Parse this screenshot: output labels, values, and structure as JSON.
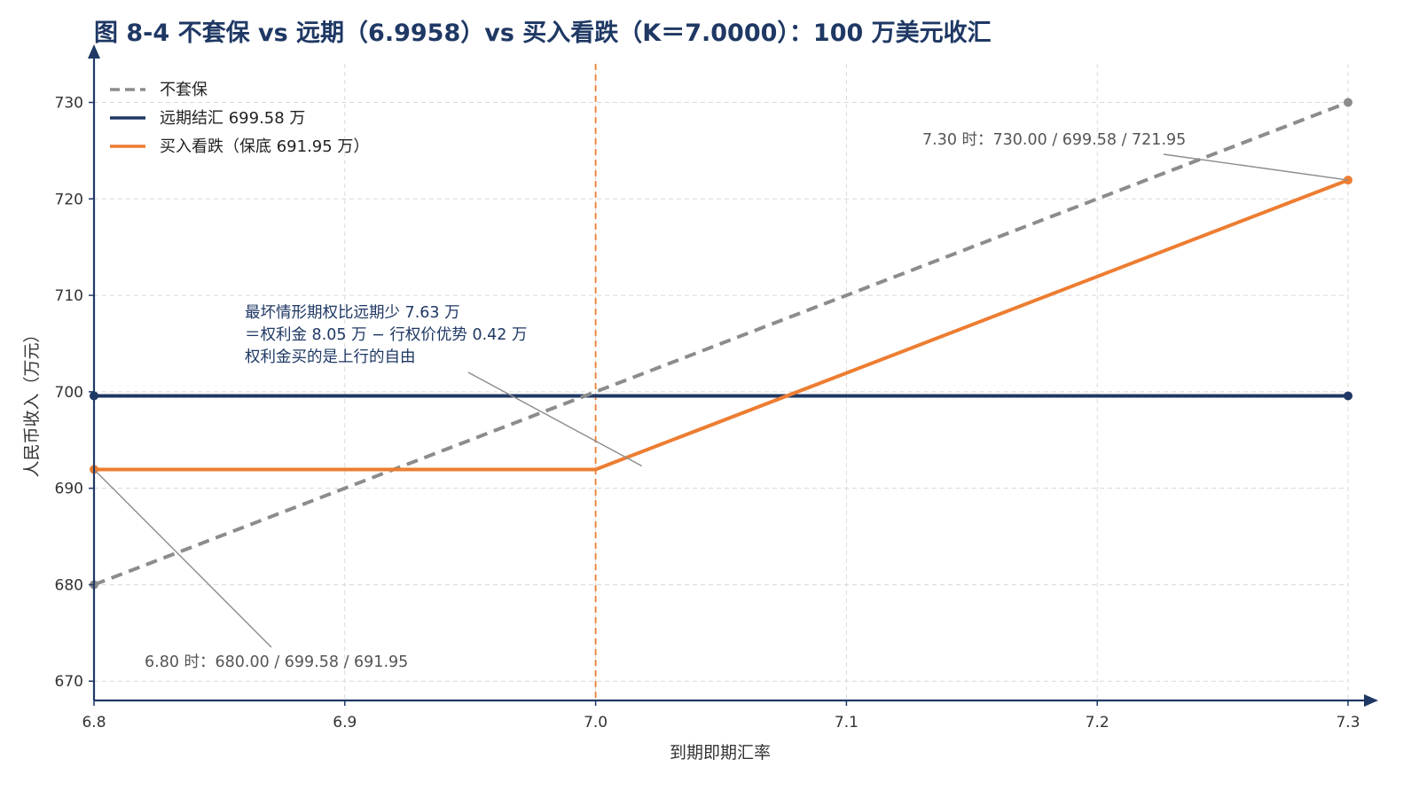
{
  "chart_data": {
    "type": "line",
    "title": "图 8-4 不套保 vs 远期（6.9958）vs 买入看跌（K＝7.0000）：100 万美元收汇",
    "xlabel": "到期即期汇率",
    "ylabel": "人民币收入（万元）",
    "xlim": [
      6.8,
      7.3
    ],
    "ylim": [
      668,
      734
    ],
    "x_ticks": [
      6.8,
      6.9,
      7.0,
      7.1,
      7.2,
      7.3
    ],
    "x_tick_labels": [
      "6.8",
      "6.9",
      "7.0",
      "7.1",
      "7.2",
      "7.3"
    ],
    "y_ticks": [
      670,
      680,
      690,
      700,
      710,
      720,
      730
    ],
    "y_tick_labels": [
      "670",
      "680",
      "690",
      "700",
      "710",
      "720",
      "730"
    ],
    "grid": true,
    "legend_position": "top-left",
    "strike_line": {
      "x": 7.0,
      "color": "#ED7D31",
      "style": "dashed"
    },
    "series": [
      {
        "name": "不套保",
        "color": "#8C8C8C",
        "style": "dashed",
        "x": [
          6.8,
          7.3
        ],
        "values": [
          680.0,
          730.0
        ]
      },
      {
        "name": "远期结汇 699.58 万",
        "color": "#1F3864",
        "style": "solid",
        "x": [
          6.8,
          7.3
        ],
        "values": [
          699.58,
          699.58
        ]
      },
      {
        "name": "买入看跌（保底 691.95 万）",
        "color": "#ED7D31",
        "style": "solid",
        "x": [
          6.8,
          7.0,
          7.3
        ],
        "values": [
          691.95,
          691.95,
          721.95
        ]
      }
    ],
    "annotations": [
      {
        "id": "ann_mid",
        "lines": [
          "最坏情形期权比远期少 7.63 万",
          "＝权利金 8.05 万 − 行权价优势 0.42 万",
          "权利金买的是上行的自由"
        ],
        "color": "#1F3864",
        "target": [
          7.0,
          691.95
        ]
      },
      {
        "id": "ann_right",
        "lines": [
          "7.30 时：730.00 / 699.58 / 721.95"
        ],
        "color": "#555555",
        "target": [
          7.3,
          721.95
        ]
      },
      {
        "id": "ann_left",
        "lines": [
          "6.80 时：680.00 / 699.58 / 691.95"
        ],
        "color": "#555555",
        "target": [
          6.8,
          691.95
        ]
      }
    ]
  },
  "colors": {
    "title": "#1F3864",
    "axis": "#1F3864",
    "grid": "#D9D9D9"
  }
}
